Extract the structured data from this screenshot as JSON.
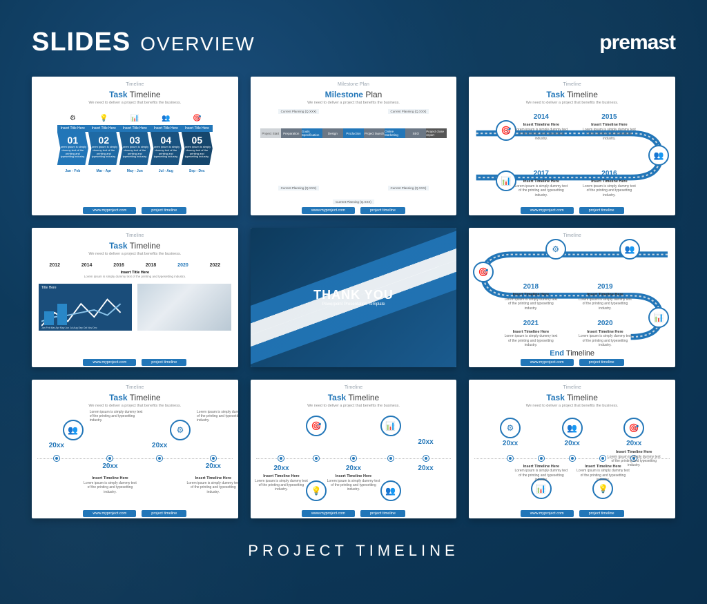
{
  "page": {
    "title_bold": "SLIDES",
    "title_light": "OVERVIEW",
    "brand": "premast",
    "footer": "PROJECT TIMELINE",
    "bg_color": "#0d3a5c",
    "accent": "#2276b8"
  },
  "common": {
    "header_small": "Timeline",
    "subtitle": "We need to deliver a project that benefits the business.",
    "footer_left": "www.myproject.com",
    "footer_right": "project timeline",
    "insert_title": "Insert Title Here",
    "insert_timeline": "Insert Timeline Here",
    "lorem3": "Lorem ipsum is simply dummy text of the printing and typesetting industry."
  },
  "slide1": {
    "title_colored": "Task",
    "title_plain": "Timeline",
    "items": [
      {
        "num": "01",
        "date": "Jan - Feb",
        "icon": "⚙"
      },
      {
        "num": "02",
        "date": "Mar - Apr",
        "icon": "💡"
      },
      {
        "num": "03",
        "date": "May - Jun",
        "icon": "📊"
      },
      {
        "num": "04",
        "date": "Jul - Aug",
        "icon": "👥"
      },
      {
        "num": "05",
        "date": "Sep - Dec",
        "icon": "🎯"
      }
    ],
    "arrow_colors": [
      "#2276b8",
      "#1f6aa5",
      "#1c5e92",
      "#19527f",
      "#16466c"
    ]
  },
  "slide2": {
    "header_small": "Milestone Plan",
    "title_colored": "Milestone",
    "title_plain": "Plan",
    "segments": [
      {
        "label": "Project Start",
        "color": "#d0d4d8",
        "text": "#555"
      },
      {
        "label": "Preparation",
        "color": "#6b7785"
      },
      {
        "label": "Goals Specification",
        "color": "#2276b8"
      },
      {
        "label": "Design",
        "color": "#6b7785"
      },
      {
        "label": "Production",
        "color": "#2276b8"
      },
      {
        "label": "Project launch",
        "color": "#6b7785"
      },
      {
        "label": "Online Marketing",
        "color": "#2276b8"
      },
      {
        "label": "SEO",
        "color": "#6b7785"
      },
      {
        "label": "Project close report",
        "color": "#555"
      }
    ],
    "flag_label": "Current Planning (Q.XXX)"
  },
  "slide3": {
    "title_colored": "Task",
    "title_plain": "Timeline",
    "years": [
      "2014",
      "2015",
      "2017",
      "2016"
    ]
  },
  "slide4": {
    "title_colored": "Task",
    "title_plain": "Timeline",
    "years": [
      "2012",
      "2014",
      "2016",
      "2018",
      "2020",
      "2022"
    ],
    "active_year": "2020",
    "panel1_title": "Title Here",
    "months": "Jan Feb Mar Apr May Jun Jul Aug Sep Oct Nov Dec"
  },
  "slide5": {
    "title": "THANK YOU",
    "subtitle": "Powerpoint Presentation Template"
  },
  "slide6": {
    "years": [
      "2018",
      "2019",
      "2021",
      "2020"
    ],
    "end_colored": "End",
    "end_plain": "Timeline"
  },
  "slide7": {
    "title_colored": "Task",
    "title_plain": "Timeline",
    "top_years": [
      "20xx",
      "20xx"
    ],
    "bottom_years": [
      "20xx",
      "20xx"
    ]
  },
  "slide8": {
    "title_colored": "Task",
    "title_plain": "Timeline",
    "top_icons": [
      "🎯",
      "📊"
    ],
    "years": [
      "20xx",
      "20xx",
      "20xx",
      "20xx"
    ]
  },
  "slide9": {
    "title_colored": "Task",
    "title_plain": "Timeline",
    "years": [
      "20xx",
      "20xx",
      "20xx"
    ]
  }
}
